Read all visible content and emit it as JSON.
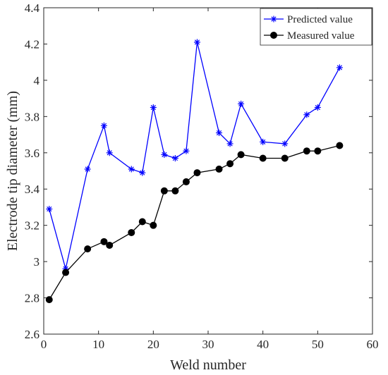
{
  "chart_data": {
    "type": "line",
    "title": "",
    "xlabel": "Weld number",
    "ylabel": "Electrode tip diameter (mm)",
    "xlim": [
      0,
      60
    ],
    "ylim": [
      2.6,
      4.4
    ],
    "x_ticks": [
      0,
      10,
      20,
      30,
      40,
      50,
      60
    ],
    "y_ticks": [
      2.6,
      2.8,
      3,
      3.2,
      3.4,
      3.6,
      3.8,
      4,
      4.2,
      4.4
    ],
    "x_tick_labels": [
      "0",
      "10",
      "20",
      "30",
      "40",
      "50",
      "60"
    ],
    "y_tick_labels": [
      "2.6",
      "2.8",
      "3",
      "3.2",
      "3.4",
      "3.6",
      "3.8",
      "4",
      "4.2",
      "4.4"
    ],
    "grid": false,
    "legend_position": "top-right",
    "series": [
      {
        "name": "Predicted value",
        "color": "#0000ff",
        "marker": "asterisk",
        "x": [
          1,
          4,
          8,
          11,
          12,
          16,
          18,
          20,
          22,
          24,
          26,
          28,
          32,
          34,
          36,
          40,
          44,
          48,
          50,
          54
        ],
        "y": [
          3.29,
          2.96,
          3.51,
          3.75,
          3.6,
          3.51,
          3.49,
          3.85,
          3.59,
          3.57,
          3.61,
          4.21,
          3.71,
          3.65,
          3.87,
          3.66,
          3.65,
          3.81,
          3.85,
          4.07
        ]
      },
      {
        "name": "Measured value",
        "color": "#000000",
        "marker": "circle",
        "x": [
          1,
          4,
          8,
          11,
          12,
          16,
          18,
          20,
          22,
          24,
          26,
          28,
          32,
          34,
          36,
          40,
          44,
          48,
          50,
          54
        ],
        "y": [
          2.79,
          2.94,
          3.07,
          3.11,
          3.09,
          3.16,
          3.22,
          3.2,
          3.39,
          3.39,
          3.44,
          3.49,
          3.51,
          3.54,
          3.59,
          3.57,
          3.57,
          3.61,
          3.61,
          3.64
        ]
      }
    ]
  }
}
